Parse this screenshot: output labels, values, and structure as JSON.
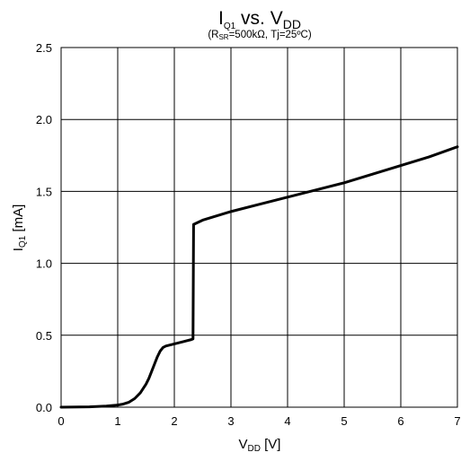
{
  "chart_data": {
    "type": "line",
    "title": {
      "main": "I",
      "main_sub": "Q1",
      "mid": " vs. V",
      "end_sub": "DD"
    },
    "subtitle": {
      "open": "(R",
      "sub": "SR",
      "rest": "=500kΩ, Tj=25ºC)"
    },
    "xlabel": {
      "main": "V",
      "sub": "DD",
      "unit": " [V]"
    },
    "ylabel": {
      "main": "I",
      "sub": "Q1",
      "unit": " [mA]"
    },
    "xlim": [
      0,
      7
    ],
    "ylim": [
      0,
      2.5
    ],
    "x_ticks": [
      "0",
      "1",
      "2",
      "3",
      "4",
      "5",
      "6",
      "7"
    ],
    "y_ticks": [
      "0.0",
      "0.5",
      "1.0",
      "1.5",
      "2.0",
      "2.5"
    ],
    "grid": true,
    "line_color": "#000000",
    "series": [
      {
        "x": [
          0,
          0.5,
          0.8,
          1.0,
          1.1,
          1.2,
          1.3,
          1.4,
          1.5,
          1.55,
          1.6,
          1.65,
          1.7,
          1.75,
          1.8,
          1.85,
          2.0,
          2.15,
          2.3,
          2.33,
          2.34,
          2.5,
          3.0,
          3.5,
          4.0,
          4.5,
          5.0,
          5.5,
          6.0,
          6.5,
          7.0
        ],
        "y": [
          0,
          0.002,
          0.008,
          0.015,
          0.022,
          0.035,
          0.06,
          0.1,
          0.16,
          0.2,
          0.25,
          0.3,
          0.35,
          0.39,
          0.415,
          0.425,
          0.44,
          0.455,
          0.47,
          0.475,
          1.27,
          1.3,
          1.36,
          1.41,
          1.46,
          1.51,
          1.56,
          1.62,
          1.68,
          1.74,
          1.81
        ]
      }
    ]
  }
}
